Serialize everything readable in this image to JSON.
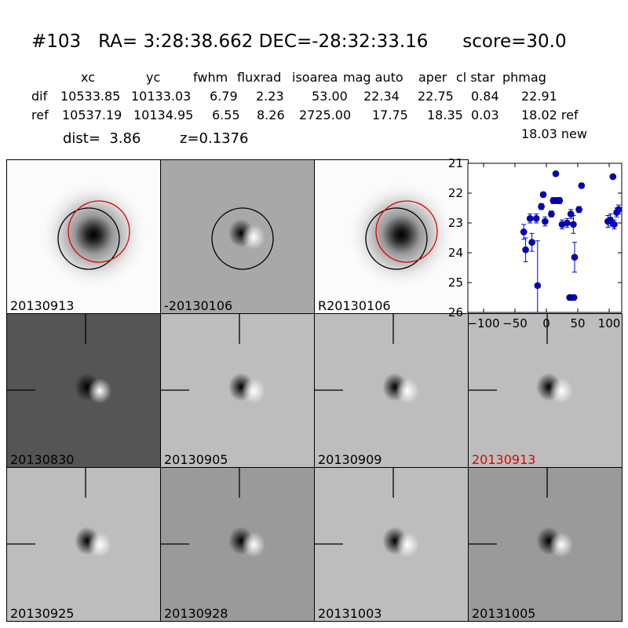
{
  "title": {
    "id": "#103",
    "ra_dec": "RA= 3:28:38.662 DEC=-28:32:33.16",
    "score": "score=30.0"
  },
  "table": {
    "headers": [
      "xc",
      "yc",
      "fwhm",
      "fluxrad",
      "isoarea",
      "mag auto",
      "aper",
      "cl star",
      "phmag"
    ],
    "rows": [
      {
        "label": "dif",
        "values": [
          "10533.85",
          "10133.03",
          "6.79",
          "2.23",
          "53.00",
          "22.34",
          "22.75",
          "0.84",
          "22.91"
        ]
      },
      {
        "label": "ref",
        "values": [
          "10537.19",
          "10134.95",
          "6.55",
          "8.26",
          "2725.00",
          "17.75",
          "18.35",
          "0.03",
          "18.02 ref"
        ]
      }
    ],
    "phmag_new": "18.03 new"
  },
  "dist_line": {
    "dist": "dist=  3.86",
    "z": "z=0.1376"
  },
  "panels": [
    {
      "label": "20130913",
      "style": "galaxy",
      "highlight": false
    },
    {
      "label": "-20130106",
      "style": "dipole-grey",
      "highlight": false
    },
    {
      "label": "R20130106",
      "style": "galaxy",
      "highlight": false
    },
    {
      "label": "20130830",
      "style": "dipole-dark",
      "highlight": false
    },
    {
      "label": "20130905",
      "style": "dipole-light",
      "highlight": false
    },
    {
      "label": "20130909",
      "style": "dipole-light",
      "highlight": false
    },
    {
      "label": "20130913",
      "style": "dipole-light",
      "highlight": true
    },
    {
      "label": "20130925",
      "style": "dipole-light",
      "highlight": false
    },
    {
      "label": "20130928",
      "style": "dipole-mid",
      "highlight": false
    },
    {
      "label": "20131003",
      "style": "dipole-light",
      "highlight": false
    },
    {
      "label": "20131005",
      "style": "dipole-mid",
      "highlight": false
    }
  ],
  "chart_data": {
    "type": "scatter",
    "title": "",
    "xlabel": "",
    "ylabel": "",
    "xlim": [
      -125,
      120
    ],
    "ylim": [
      26,
      21
    ],
    "y_inverted": true,
    "xticks": [
      -100,
      -50,
      0,
      50,
      100
    ],
    "xtick_labels": [
      "−100",
      "−50",
      "0",
      "50",
      "100"
    ],
    "yticks": [
      21,
      22,
      23,
      24,
      25,
      26
    ],
    "ytick_labels": [
      "21",
      "22",
      "23",
      "24",
      "25",
      "26"
    ],
    "marker_color": "#0000cc",
    "series": [
      {
        "points": [
          {
            "x": -36,
            "y": 23.3,
            "err": 0.25
          },
          {
            "x": -33,
            "y": 23.9,
            "err": 0.4
          },
          {
            "x": -26,
            "y": 22.85,
            "err": 0.15
          },
          {
            "x": -23,
            "y": 23.65,
            "err": 0.3
          },
          {
            "x": -16,
            "y": 22.85,
            "err": 0.15
          },
          {
            "x": -14,
            "y": 25.1,
            "err": 1.5
          },
          {
            "x": -8,
            "y": 22.45,
            "err": 0.1
          },
          {
            "x": -5,
            "y": 22.05,
            "err": 0.08
          },
          {
            "x": -2,
            "y": 22.95,
            "err": 0.15
          },
          {
            "x": 8,
            "y": 22.7,
            "err": 0.1
          },
          {
            "x": 11,
            "y": 22.25,
            "err": 0.1
          },
          {
            "x": 15,
            "y": 21.35,
            "err": 0.05
          },
          {
            "x": 18,
            "y": 22.25,
            "err": 0.1
          },
          {
            "x": 21,
            "y": 22.25,
            "err": 0.1
          },
          {
            "x": 25,
            "y": 23.05,
            "err": 0.15
          },
          {
            "x": 33,
            "y": 23.0,
            "err": 0.15
          },
          {
            "x": 37,
            "y": 25.5,
            "err": 0.0
          },
          {
            "x": 39,
            "y": 22.7,
            "err": 0.15
          },
          {
            "x": 40,
            "y": 25.5,
            "err": 0.0
          },
          {
            "x": 43,
            "y": 23.05,
            "err": 0.3
          },
          {
            "x": 44,
            "y": 25.5,
            "err": 0.0
          },
          {
            "x": 45,
            "y": 24.15,
            "err": 0.5
          },
          {
            "x": 52,
            "y": 22.55,
            "err": 0.1
          },
          {
            "x": 56,
            "y": 21.75,
            "err": 0.08
          },
          {
            "x": 98,
            "y": 22.95,
            "err": 0.2
          },
          {
            "x": 102,
            "y": 22.9,
            "err": 0.2
          },
          {
            "x": 106,
            "y": 21.45,
            "err": 0.05
          },
          {
            "x": 108,
            "y": 23.05,
            "err": 0.15
          },
          {
            "x": 112,
            "y": 22.65,
            "err": 0.15
          },
          {
            "x": 115,
            "y": 22.55,
            "err": 0.15
          }
        ]
      }
    ]
  }
}
